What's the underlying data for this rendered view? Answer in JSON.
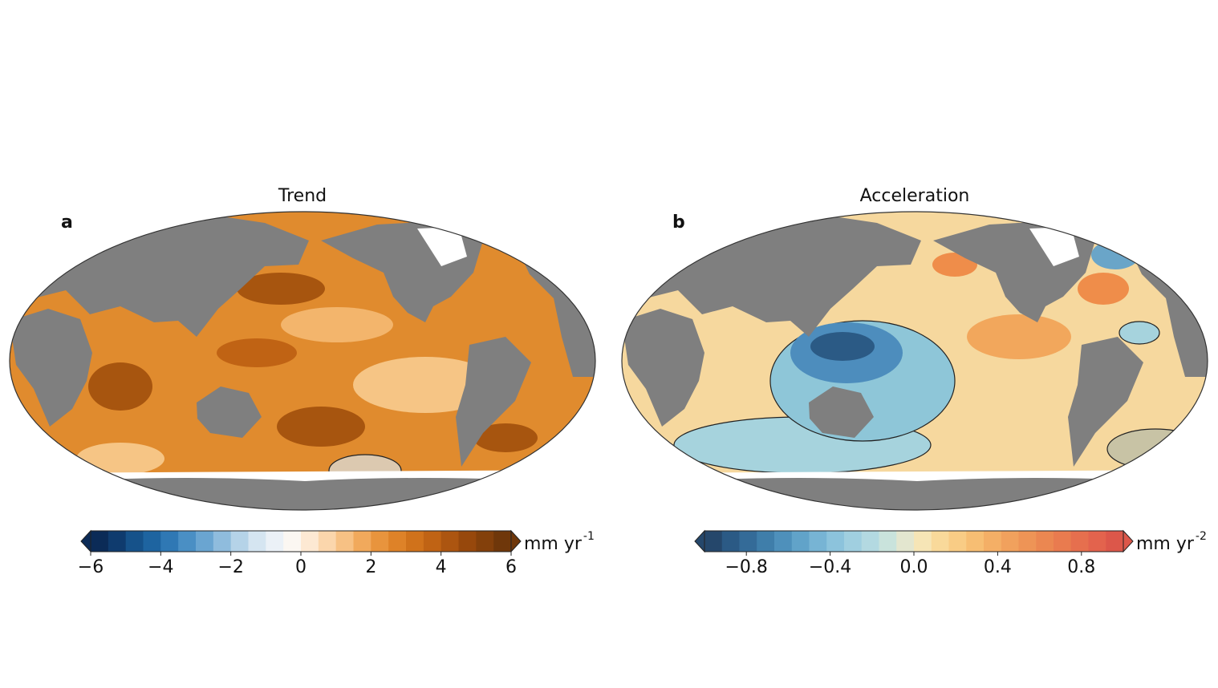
{
  "panels": [
    {
      "label": "a",
      "title": "Trend",
      "colorbar": {
        "range": [
          -6,
          6
        ],
        "unit": "mm yr",
        "unit_exponent": "-1",
        "ticks": [
          {
            "value": -6,
            "label": "−6"
          },
          {
            "value": -4,
            "label": "−4"
          },
          {
            "value": -2,
            "label": "−2"
          },
          0,
          2,
          4,
          6
        ],
        "colors": [
          "#0b2b57",
          "#0f3b6e",
          "#16528a",
          "#1e64a0",
          "#2f78b4",
          "#4a8fc4",
          "#6aa5d1",
          "#8fbcdd",
          "#b5d3e8",
          "#d5e5f1",
          "#ebf1f7",
          "#fbf7f2",
          "#fde9d3",
          "#fbd6ac",
          "#f7c184",
          "#f1a95c",
          "#e8943d",
          "#de8228",
          "#d0721b",
          "#c06314",
          "#ac5510",
          "#97480c",
          "#83400b",
          "#6f370a"
        ]
      }
    },
    {
      "label": "b",
      "title": "Acceleration",
      "colorbar": {
        "range": [
          -1,
          1
        ],
        "unit": "mm yr",
        "unit_exponent": "-2",
        "ticks": [
          {
            "value": -0.8,
            "label": "−0.8"
          },
          {
            "value": -0.4,
            "label": "−0.4"
          },
          {
            "value": 0,
            "label": "0.0"
          },
          0.4,
          0.8
        ],
        "colors": [
          "#25476b",
          "#2b5a85",
          "#346b98",
          "#3f7eaa",
          "#4e90bb",
          "#61a3c9",
          "#77b4d4",
          "#8cc3dc",
          "#a0cfe0",
          "#b3d9e1",
          "#c9e3dc",
          "#e3e6cf",
          "#f6e5b6",
          "#f9d99a",
          "#f9cc85",
          "#f7be73",
          "#f4af66",
          "#f1a15d",
          "#ee9456",
          "#eb8751",
          "#e97b4f",
          "#e66f4e",
          "#e3634d",
          "#dc574a"
        ]
      }
    }
  ]
}
